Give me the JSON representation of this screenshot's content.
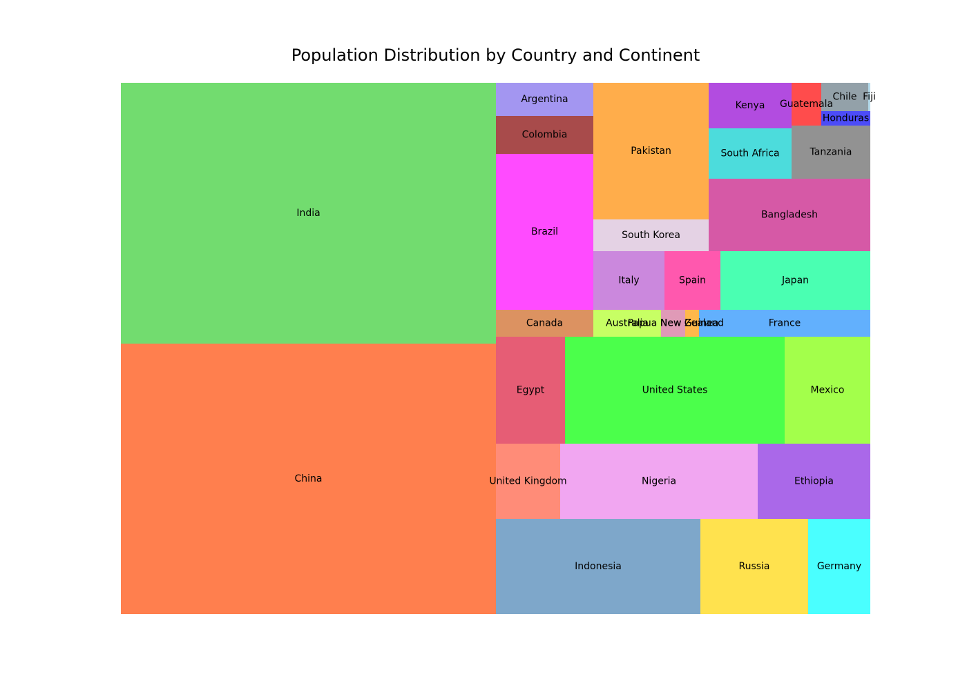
{
  "chart_data": {
    "type": "treemap",
    "title": "Population Distribution by Country and Continent",
    "items": [
      {
        "label": "China",
        "color": "#ff7f4e"
      },
      {
        "label": "India",
        "color": "#72dc6f"
      },
      {
        "label": "Indonesia",
        "color": "#7ea7ca"
      },
      {
        "label": "Russia",
        "color": "#ffe24e"
      },
      {
        "label": "Germany",
        "color": "#4affff"
      },
      {
        "label": "United Kingdom",
        "color": "#ff8c78"
      },
      {
        "label": "Nigeria",
        "color": "#f1a6f1"
      },
      {
        "label": "Ethiopia",
        "color": "#aa68e9"
      },
      {
        "label": "Egypt",
        "color": "#e65d75"
      },
      {
        "label": "United States",
        "color": "#4bff4b"
      },
      {
        "label": "Mexico",
        "color": "#a3ff4b"
      },
      {
        "label": "Canada",
        "color": "#dc9261"
      },
      {
        "label": "Australia",
        "color": "#c7ff64"
      },
      {
        "label": "Papua New Guinea",
        "color": "#e09ab7"
      },
      {
        "label": "New Zealand",
        "color": "#ffb84b"
      },
      {
        "label": "France",
        "color": "#62b0fd"
      },
      {
        "label": "Brazil",
        "color": "#ff4bff"
      },
      {
        "label": "Colombia",
        "color": "#a84b4b"
      },
      {
        "label": "Argentina",
        "color": "#a396f1"
      },
      {
        "label": "Pakistan",
        "color": "#ffad4b"
      },
      {
        "label": "South Korea",
        "color": "#e4d2e4"
      },
      {
        "label": "Italy",
        "color": "#cb88dd"
      },
      {
        "label": "Spain",
        "color": "#ff58ae"
      },
      {
        "label": "Japan",
        "color": "#4affb2"
      },
      {
        "label": "Bangladesh",
        "color": "#d659a6"
      },
      {
        "label": "Kenya",
        "color": "#b24ce0"
      },
      {
        "label": "South Africa",
        "color": "#4cdcdc"
      },
      {
        "label": "Tanzania",
        "color": "#929292"
      },
      {
        "label": "Guatemala",
        "color": "#ff4c4c"
      },
      {
        "label": "Chile",
        "color": "#93a1a9"
      },
      {
        "label": "Honduras",
        "color": "#4c4cf8"
      },
      {
        "label": "Fiji",
        "color": "#b3d9ea"
      }
    ]
  }
}
